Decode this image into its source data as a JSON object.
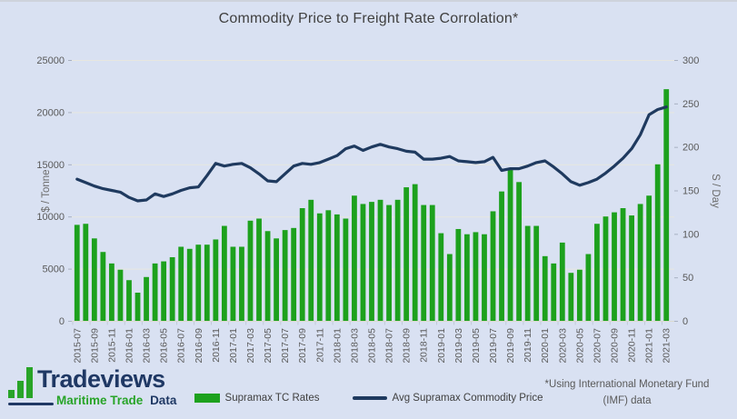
{
  "title": "Commodity Price to Freight Rate Corrolation*",
  "colors": {
    "background": "#d9e1f2",
    "bar_green": "#1da11d",
    "line_navy": "#1f3a5f",
    "gridline": "#e7e7df",
    "axis_text": "#595959",
    "title_text": "#404040",
    "logo_navy": "#1f3864",
    "logo_green": "#28a428"
  },
  "legend": {
    "bars_label": "Supramax TC Rates",
    "line_label": "Avg Supramax Commodity Price"
  },
  "footnote": {
    "line1": "*Using International Monetary Fund",
    "line2": "(IMF) data"
  },
  "logo": {
    "wordmark": "Tradeviews",
    "tagline_green": "Maritime Trade",
    "tagline_dark": "Data"
  },
  "chart_data": {
    "type": "bar",
    "subtype": "bar+line combo, dual axis",
    "title": "Commodity Price to Freight Rate Corrolation*",
    "left_axis": {
      "title": "$ / Tonne",
      "min": 0,
      "max": 25000,
      "step": 5000
    },
    "right_axis": {
      "title": "S / Day",
      "min": 0,
      "max": 300,
      "step": 50
    },
    "grid": "horizontal only",
    "legend_position": "bottom center",
    "x_label_step": 2,
    "months": [
      "2015-07",
      "2015-08",
      "2015-09",
      "2015-10",
      "2015-11",
      "2015-12",
      "2016-01",
      "2016-02",
      "2016-03",
      "2016-04",
      "2016-05",
      "2016-06",
      "2016-07",
      "2016-08",
      "2016-09",
      "2016-10",
      "2016-11",
      "2016-12",
      "2017-01",
      "2017-02",
      "2017-03",
      "2017-04",
      "2017-05",
      "2017-06",
      "2017-07",
      "2017-08",
      "2017-09",
      "2017-10",
      "2017-11",
      "2017-12",
      "2018-01",
      "2018-02",
      "2018-03",
      "2018-04",
      "2018-05",
      "2018-06",
      "2018-07",
      "2018-08",
      "2018-09",
      "2018-10",
      "2018-11",
      "2018-12",
      "2019-01",
      "2019-02",
      "2019-03",
      "2019-04",
      "2019-05",
      "2019-06",
      "2019-07",
      "2019-08",
      "2019-09",
      "2019-10",
      "2019-11",
      "2019-12",
      "2020-01",
      "2020-02",
      "2020-03",
      "2020-04",
      "2020-05",
      "2020-06",
      "2020-07",
      "2020-08",
      "2020-09",
      "2020-10",
      "2020-11",
      "2020-12",
      "2021-01",
      "2021-02",
      "2021-03"
    ],
    "series": [
      {
        "name": "Supramax TC Rates",
        "type": "bar",
        "axis": "left",
        "color": "#1da11d",
        "values": [
          9200,
          9300,
          7900,
          6600,
          5500,
          4900,
          3900,
          2700,
          4200,
          5500,
          5700,
          6100,
          7100,
          6900,
          7300,
          7300,
          7800,
          9100,
          7100,
          7100,
          9600,
          9800,
          8600,
          7900,
          8700,
          8900,
          10800,
          11600,
          10300,
          10600,
          10200,
          9800,
          12000,
          11200,
          11400,
          11600,
          11100,
          11600,
          12800,
          13100,
          11100,
          11100,
          8400,
          6400,
          8800,
          8300,
          8500,
          8300,
          10500,
          12400,
          14500,
          13300,
          9100,
          9100,
          6200,
          5500,
          7500,
          4600,
          4900,
          6400,
          9300,
          10000,
          10400,
          10800,
          10100,
          11200,
          12000,
          15000,
          22200
        ]
      },
      {
        "name": "Avg Supramax Commodity Price",
        "type": "line",
        "axis": "right",
        "color": "#1f3a5f",
        "values": [
          163,
          159,
          155,
          152,
          150,
          148,
          142,
          138,
          139,
          146,
          143,
          146,
          150,
          153,
          154,
          167,
          181,
          178,
          180,
          181,
          176,
          169,
          161,
          160,
          169,
          178,
          181,
          180,
          182,
          186,
          190,
          198,
          201,
          196,
          200,
          203,
          200,
          198,
          195,
          194,
          186,
          186,
          187,
          189,
          184,
          183,
          182,
          183,
          188,
          173,
          175,
          175,
          178,
          182,
          184,
          177,
          169,
          160,
          156,
          159,
          163,
          170,
          178,
          187,
          198,
          214,
          237,
          243,
          246
        ]
      }
    ]
  }
}
